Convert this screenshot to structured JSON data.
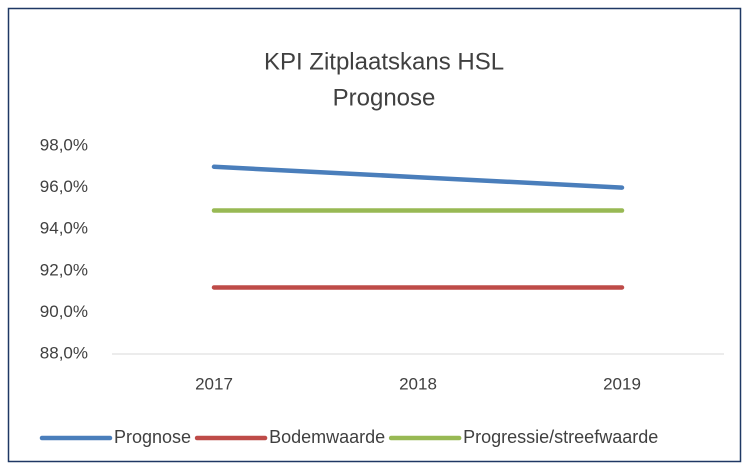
{
  "chart_data": {
    "type": "line",
    "title": "KPI Zitplaatskans HSL",
    "subtitle": "Prognose",
    "categories": [
      "2017",
      "2018",
      "2019"
    ],
    "series": [
      {
        "name": "Prognose",
        "color": "#4a7ebb",
        "values": [
          97.0,
          96.5,
          96.0
        ]
      },
      {
        "name": "Bodemwaarde",
        "color": "#be4b48",
        "values": [
          91.2,
          91.2,
          91.2
        ]
      },
      {
        "name": "Progressie/streefwaarde",
        "color": "#98b954",
        "values": [
          94.9,
          94.9,
          94.9
        ]
      }
    ],
    "ylim": [
      88,
      98
    ],
    "yticks": [
      {
        "value": 88,
        "label": "88,0%"
      },
      {
        "value": 90,
        "label": "90,0%"
      },
      {
        "value": 92,
        "label": "92,0%"
      },
      {
        "value": 94,
        "label": "94,0%"
      },
      {
        "value": 96,
        "label": "96,0%"
      },
      {
        "value": 98,
        "label": "98,0%"
      }
    ],
    "grid": false,
    "legend": "bottom"
  }
}
